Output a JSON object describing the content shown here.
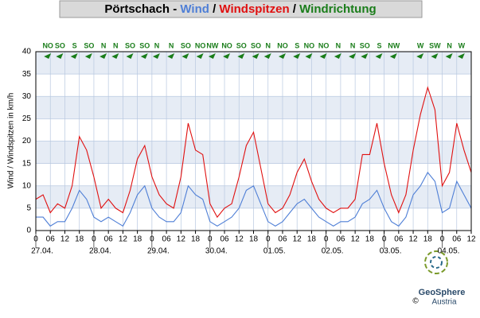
{
  "chart_data": {
    "type": "line",
    "title": "Pörtschach",
    "title_separators": [
      "-",
      "/",
      "/"
    ],
    "direction_title": "Windrichtung",
    "direction_color": "#1a7d1a",
    "ylabel": "Wind / Windspitzen in km/h",
    "x": [
      0,
      3,
      6,
      9,
      12,
      15,
      18,
      21,
      24,
      27,
      30,
      33,
      36,
      39,
      42,
      45,
      48,
      51,
      54,
      57,
      60,
      63,
      66,
      69,
      72,
      75,
      78,
      81,
      84,
      87,
      90,
      93,
      96,
      99,
      102,
      105,
      108,
      111,
      114,
      117,
      120,
      123,
      126,
      129,
      132,
      135,
      138,
      141,
      144,
      147,
      150,
      153,
      156,
      159,
      162,
      165,
      168,
      171,
      174,
      177,
      180
    ],
    "series": [
      {
        "name": "Wind",
        "color": "#4f7fd6",
        "values": [
          3,
          3,
          1,
          2,
          2,
          5,
          9,
          7,
          3,
          2,
          3,
          2,
          1,
          4,
          8,
          10,
          5,
          3,
          2,
          2,
          4,
          10,
          8,
          7,
          2,
          1,
          2,
          3,
          5,
          9,
          10,
          6,
          2,
          1,
          2,
          4,
          6,
          7,
          5,
          3,
          2,
          1,
          2,
          2,
          3,
          6,
          7,
          9,
          5,
          2,
          1,
          3,
          8,
          10,
          13,
          11,
          4,
          5,
          11,
          8,
          5
        ]
      },
      {
        "name": "Windspitzen",
        "color": "#e01010",
        "values": [
          7,
          8,
          4,
          6,
          5,
          10,
          21,
          18,
          12,
          5,
          7,
          5,
          4,
          9,
          16,
          19,
          12,
          8,
          6,
          5,
          12,
          24,
          18,
          17,
          6,
          3,
          5,
          6,
          12,
          19,
          22,
          14,
          6,
          4,
          5,
          8,
          13,
          16,
          11,
          7,
          5,
          4,
          5,
          5,
          7,
          17,
          17,
          24,
          15,
          8,
          4,
          8,
          18,
          26,
          32,
          27,
          10,
          13,
          24,
          18,
          13
        ]
      }
    ],
    "xlim": [
      0,
      180
    ],
    "xticks": [
      0,
      {
        "value": 6,
        "label": "06"
      },
      12,
      18,
      {
        "value": 24,
        "label": "0"
      },
      {
        "value": 30,
        "label": "06"
      },
      {
        "value": 36,
        "label": "12"
      },
      {
        "value": 42,
        "label": "18"
      },
      {
        "value": 48,
        "label": "0"
      },
      {
        "value": 54,
        "label": "06"
      },
      {
        "value": 60,
        "label": "12"
      },
      {
        "value": 66,
        "label": "18"
      },
      {
        "value": 72,
        "label": "0"
      },
      {
        "value": 78,
        "label": "06"
      },
      {
        "value": 84,
        "label": "12"
      },
      {
        "value": 90,
        "label": "18"
      },
      {
        "value": 96,
        "label": "0"
      },
      {
        "value": 102,
        "label": "06"
      },
      {
        "value": 108,
        "label": "12"
      },
      {
        "value": 114,
        "label": "18"
      },
      {
        "value": 120,
        "label": "0"
      },
      {
        "value": 126,
        "label": "06"
      },
      {
        "value": 132,
        "label": "12"
      },
      {
        "value": 138,
        "label": "18"
      },
      {
        "value": 144,
        "label": "0"
      },
      {
        "value": 150,
        "label": "06"
      },
      {
        "value": 156,
        "label": "12"
      },
      {
        "value": 162,
        "label": "18"
      },
      {
        "value": 168,
        "label": "0"
      },
      {
        "value": 174,
        "label": "06"
      },
      {
        "value": 180,
        "label": "12"
      }
    ],
    "date_labels": [
      {
        "value": 0,
        "label": "27.04."
      },
      {
        "value": 24,
        "label": "28.04."
      },
      {
        "value": 48,
        "label": "29.04."
      },
      {
        "value": 72,
        "label": "30.04."
      },
      {
        "value": 96,
        "label": "01.05."
      },
      {
        "value": 120,
        "label": "02.05."
      },
      {
        "value": 144,
        "label": "03.05."
      },
      {
        "value": 168,
        "label": "04.05."
      }
    ],
    "ylim": [
      0,
      40
    ],
    "yticks": [
      0,
      5,
      10,
      15,
      20,
      25,
      30,
      35,
      40
    ],
    "grid": true,
    "directions": {
      "x": [
        5,
        10,
        16,
        22,
        28,
        33,
        39,
        45,
        50,
        56,
        62,
        68,
        73,
        79,
        85,
        91,
        96,
        102,
        108,
        113,
        119,
        125,
        131,
        136,
        142,
        148,
        159,
        165,
        171,
        176
      ],
      "labels": [
        "NO",
        "SO",
        "S",
        "SO",
        "N",
        "N",
        "SO",
        "SO",
        "N",
        "N",
        "SO",
        "NO",
        "NW",
        "NO",
        "SO",
        "SO",
        "N",
        "NO",
        "S",
        "NO",
        "NO",
        "N",
        "N",
        "SO",
        "S",
        "NW",
        "W",
        "SW",
        "N",
        "W"
      ]
    },
    "logo": {
      "name": "GeoSphere",
      "sub": "Austria",
      "copyright": "©"
    }
  }
}
